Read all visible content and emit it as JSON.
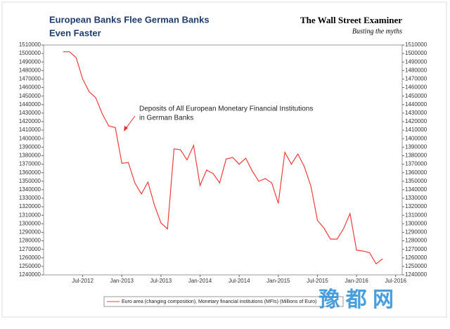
{
  "chart_data": {
    "type": "line",
    "title": [
      "European Banks Flee German Banks",
      "Even Faster"
    ],
    "brand": "The Wall Street Examiner",
    "brand_tagline": "Busting the myths",
    "annotation": [
      "Deposits of All European Monetary Financial Institutions",
      "in German Banks"
    ],
    "watermark": "豫 都 网",
    "x": [
      "2012-04",
      "2012-05",
      "2012-06",
      "2012-07",
      "2012-08",
      "2012-09",
      "2012-10",
      "2012-11",
      "2012-12",
      "2013-01",
      "2013-02",
      "2013-03",
      "2013-04",
      "2013-05",
      "2013-06",
      "2013-07",
      "2013-08",
      "2013-09",
      "2013-10",
      "2013-11",
      "2013-12",
      "2014-01",
      "2014-02",
      "2014-03",
      "2014-04",
      "2014-05",
      "2014-06",
      "2014-07",
      "2014-08",
      "2014-09",
      "2014-10",
      "2014-11",
      "2014-12",
      "2015-01",
      "2015-02",
      "2015-03",
      "2015-04",
      "2015-05",
      "2015-06",
      "2015-07",
      "2015-08",
      "2015-09",
      "2015-10",
      "2015-11",
      "2015-12",
      "2016-01",
      "2016-02",
      "2016-03",
      "2016-04",
      "2016-05"
    ],
    "series": [
      {
        "name": "Euro area (changing composition), Monetary financial institutions (MFIs) (Millions of Euro)",
        "color": "#f03c3c",
        "values": [
          1502000,
          1502000,
          1495000,
          1470000,
          1455000,
          1448000,
          1429000,
          1415000,
          1413000,
          1371000,
          1372000,
          1348000,
          1335000,
          1349000,
          1322000,
          1301000,
          1294000,
          1388000,
          1387000,
          1375000,
          1392000,
          1345000,
          1363000,
          1359000,
          1348000,
          1376000,
          1378000,
          1370000,
          1377000,
          1362000,
          1350000,
          1353000,
          1348000,
          1324000,
          1384000,
          1370000,
          1382000,
          1367000,
          1344000,
          1304000,
          1295000,
          1282000,
          1282000,
          1294000,
          1312000,
          1269000,
          1268000,
          1266000,
          1253000,
          1259000
        ]
      }
    ],
    "xlim": [
      "2012-01",
      "2016-08"
    ],
    "xticks": [
      {
        "value": "2012-07",
        "label": "Jul-2012"
      },
      {
        "value": "2013-01",
        "label": "Jan-2013"
      },
      {
        "value": "2013-07",
        "label": "Jul-2013"
      },
      {
        "value": "2014-01",
        "label": "Jan-2014"
      },
      {
        "value": "2014-07",
        "label": "Jul-2014"
      },
      {
        "value": "2015-01",
        "label": "Jan-2015"
      },
      {
        "value": "2015-07",
        "label": "Jul-2015"
      },
      {
        "value": "2016-01",
        "label": "Jan-2016"
      },
      {
        "value": "2016-07",
        "label": "Jul-2016"
      }
    ],
    "ylim": [
      1240000,
      1510000
    ],
    "yticks": [
      1240000,
      1250000,
      1260000,
      1270000,
      1280000,
      1290000,
      1300000,
      1310000,
      1320000,
      1330000,
      1340000,
      1350000,
      1360000,
      1370000,
      1380000,
      1390000,
      1400000,
      1410000,
      1420000,
      1430000,
      1440000,
      1450000,
      1460000,
      1470000,
      1480000,
      1490000,
      1500000,
      1510000
    ],
    "y2lim": [
      1240000,
      1510000
    ],
    "y2ticks": [
      1240000,
      1250000,
      1260000,
      1270000,
      1280000,
      1290000,
      1300000,
      1310000,
      1320000,
      1330000,
      1340000,
      1350000,
      1360000,
      1370000,
      1380000,
      1390000,
      1400000,
      1410000,
      1420000,
      1430000,
      1440000,
      1450000,
      1460000,
      1470000,
      1480000,
      1490000,
      1500000,
      1510000
    ],
    "grid": false
  }
}
